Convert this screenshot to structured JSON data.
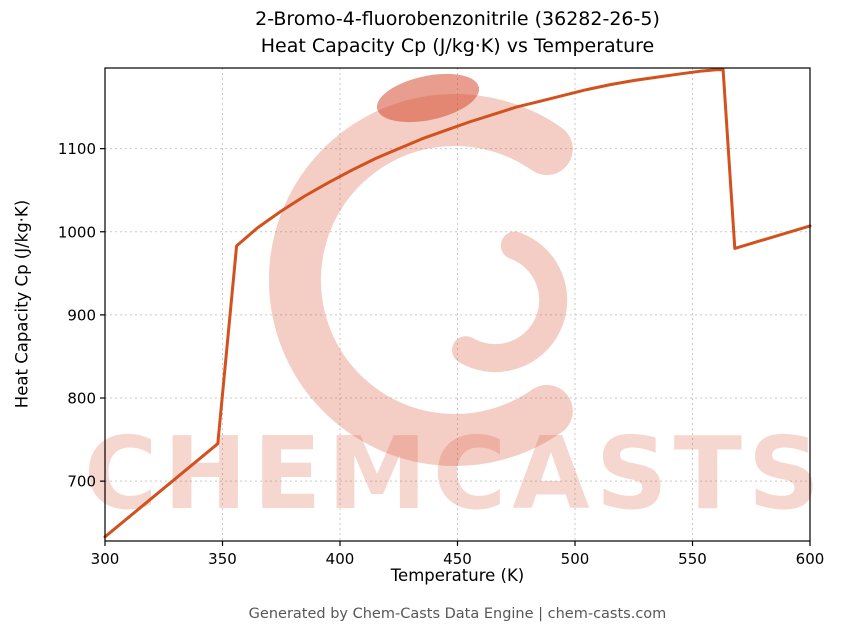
{
  "header": {
    "title_line1": "2-Bromo-4-fluorobenzonitrile (36282-26-5)",
    "title_line2": "Heat Capacity Cp (J/kg·K) vs Temperature"
  },
  "footer": {
    "text": "Generated by Chem-Casts Data Engine | chem-casts.com"
  },
  "watermark": {
    "text": "CHEMCASTS",
    "text_color": "rgba(214,73,40,0.22)",
    "ring_color": "rgba(214,73,40,0.27)",
    "blob_color": "rgba(210,60,30,0.5)"
  },
  "chart_data": {
    "type": "line",
    "title": "2-Bromo-4-fluorobenzonitrile (36282-26-5) Heat Capacity Cp (J/kg·K) vs Temperature",
    "xlabel": "Temperature (K)",
    "ylabel": "Heat Capacity Cp (J/kg·K)",
    "xlim": [
      300,
      600
    ],
    "ylim": [
      628,
      1197
    ],
    "xticks": [
      300,
      350,
      400,
      450,
      500,
      550,
      600
    ],
    "yticks": [
      700,
      800,
      900,
      1000,
      1100
    ],
    "grid": true,
    "legend": "none",
    "line_color": "#d2521e",
    "line_width": 3,
    "series": [
      {
        "name": "Heat Capacity Cp",
        "x": [
          300,
          348,
          356,
          365,
          375,
          385,
          395,
          405,
          415,
          425,
          435,
          445,
          455,
          465,
          475,
          485,
          495,
          505,
          515,
          525,
          535,
          545,
          553,
          560,
          563,
          568,
          600
        ],
        "y": [
          633,
          745,
          983,
          1005,
          1025,
          1043,
          1059,
          1074,
          1088,
          1100,
          1112,
          1122,
          1132,
          1141,
          1150,
          1157,
          1164,
          1171,
          1177,
          1182,
          1186,
          1190,
          1193,
          1195,
          1195,
          980,
          1007
        ]
      }
    ]
  }
}
